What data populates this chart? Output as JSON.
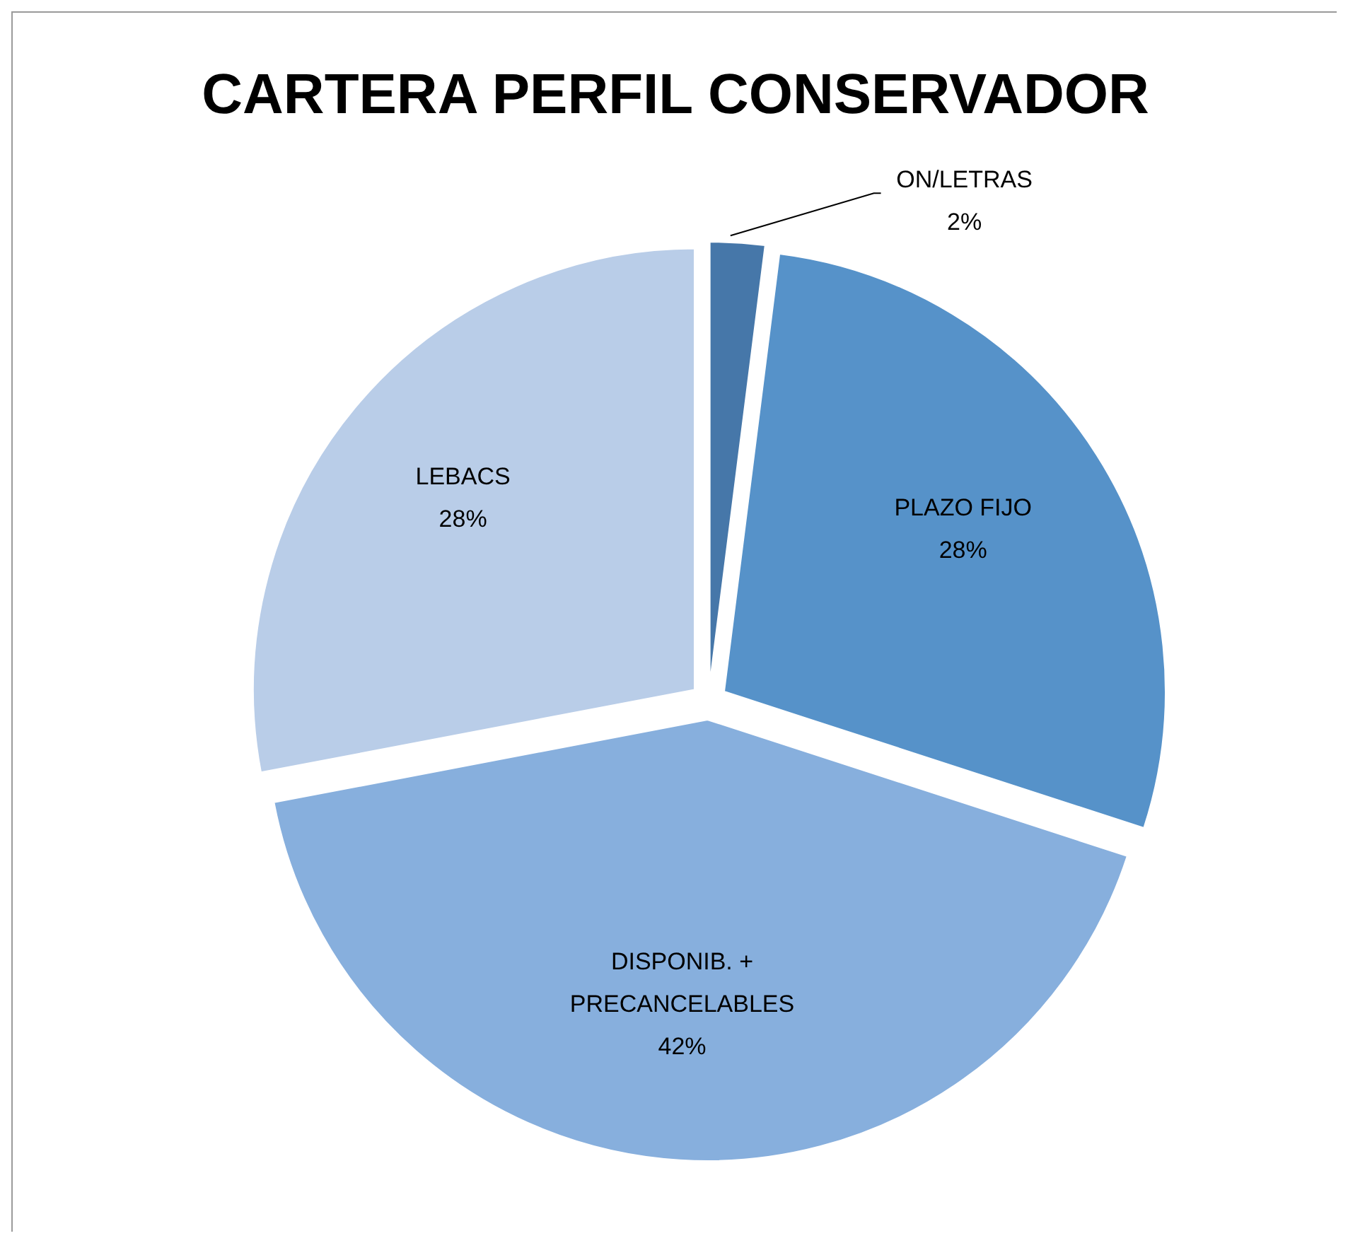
{
  "chart_data": {
    "type": "pie",
    "title": "CARTERA PERFIL CONSERVADOR",
    "categories": [
      "ON/LETRAS",
      "PLAZO FIJO",
      "DISPONIB. + PRECANCELABLES",
      "LEBACS"
    ],
    "values": [
      2,
      28,
      42,
      28
    ],
    "value_labels": [
      "2%",
      "28%",
      "42%",
      "28%"
    ],
    "colors": [
      "#4677a9",
      "#5692c9",
      "#87afdd",
      "#b9cde8"
    ]
  }
}
